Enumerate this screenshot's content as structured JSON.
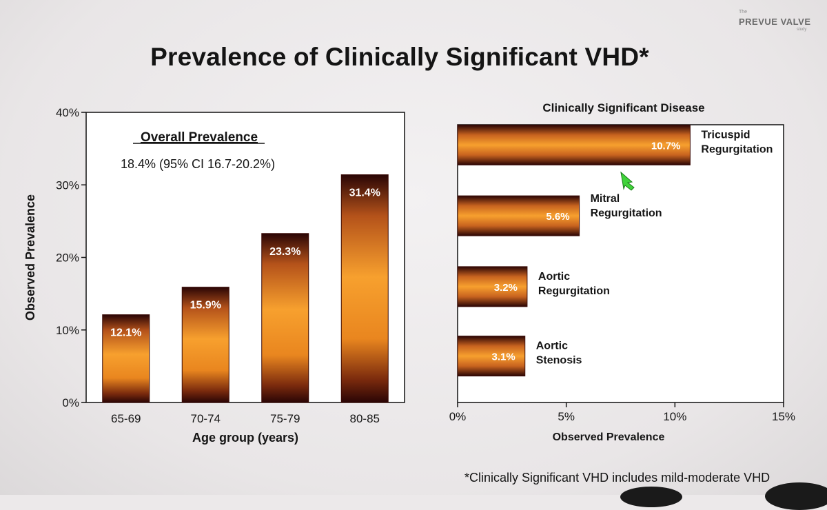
{
  "slide": {
    "title": "Prevalence of Clinically Significant VHD*",
    "footnote": "*Clinically Significant VHD includes mild-moderate VHD",
    "logo": {
      "the": "The",
      "name": "PREVUE VALVE",
      "study": "study"
    }
  },
  "colors": {
    "bar_mid": "#f59a2a",
    "bar_edge": "#2a0505",
    "axis": "#111111",
    "label_text": "#ffffff",
    "cursor": "#3fd33a"
  },
  "chart_data": [
    {
      "type": "bar",
      "orientation": "vertical",
      "categories": [
        "65-69",
        "70-74",
        "75-79",
        "80-85"
      ],
      "values": [
        12.1,
        15.9,
        23.3,
        31.4
      ],
      "data_labels": [
        "12.1%",
        "15.9%",
        "23.3%",
        "31.4%"
      ],
      "xlabel": "Age group (years)",
      "ylabel": "Observed Prevalence",
      "ylim": [
        0,
        40
      ],
      "yticks": [
        0,
        10,
        20,
        30,
        40
      ],
      "ytick_labels": [
        "0%",
        "10%",
        "20%",
        "30%",
        "40%"
      ],
      "grid": false,
      "annotation_title": "Overall Prevalence",
      "annotation_text": "18.4% (95% CI 16.7-20.2%)"
    },
    {
      "type": "bar",
      "orientation": "horizontal",
      "title": "Clinically Significant Disease",
      "categories": [
        "Tricuspid Regurgitation",
        "Mitral Regurgitation",
        "Aortic Regurgitation",
        "Aortic Stenosis"
      ],
      "category_lines": [
        [
          "Tricuspid",
          "Regurgitation"
        ],
        [
          "Mitral",
          "Regurgitation"
        ],
        [
          "Aortic",
          "Regurgitation"
        ],
        [
          "Aortic",
          "Stenosis"
        ]
      ],
      "values": [
        10.7,
        5.6,
        3.2,
        3.1
      ],
      "data_labels": [
        "10.7%",
        "5.6%",
        "3.2%",
        "3.1%"
      ],
      "xlabel": "Observed Prevalence",
      "ylabel": "",
      "xlim": [
        0,
        15
      ],
      "xticks": [
        0,
        5,
        10,
        15
      ],
      "xtick_labels": [
        "0%",
        "5%",
        "10%",
        "15%"
      ],
      "grid": false
    }
  ]
}
